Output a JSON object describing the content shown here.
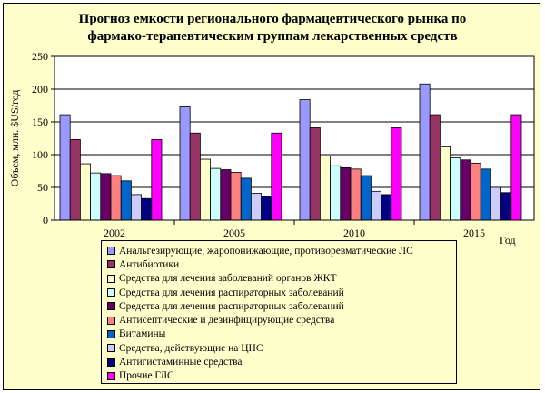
{
  "chart_data": {
    "type": "bar",
    "title": [
      "Прогноз емкости регионального фармацевтического рынка по",
      "фармако-терапевтическим группам лекарственных средств"
    ],
    "xlabel": "Год",
    "ylabel": "Объем, млн. $US/год",
    "ylim": [
      0,
      250
    ],
    "yticks": [
      0,
      50,
      100,
      150,
      200,
      250
    ],
    "grid": true,
    "legend_position": "bottom",
    "categories": [
      "2002",
      "2005",
      "2010",
      "2015"
    ],
    "series": [
      {
        "name": "Анальгезирующие, жаропонижающие, противоревматические ЛС",
        "color": "#9999ff",
        "values": [
          161,
          173,
          184,
          208
        ]
      },
      {
        "name": "Антибиотики",
        "color": "#993366",
        "values": [
          123,
          133,
          141,
          161
        ]
      },
      {
        "name": "Средства для лечения заболеваний органов ЖКТ",
        "color": "#ffffcc",
        "values": [
          86,
          93,
          98,
          112
        ]
      },
      {
        "name": "Средства для лечения распираторных заболеваний",
        "color": "#ccffff",
        "values": [
          72,
          79,
          83,
          95
        ]
      },
      {
        "name": "Средства для лечения распираторных заболеваний",
        "color": "#660066",
        "values": [
          71,
          77,
          80,
          92
        ]
      },
      {
        "name": "Антисептические и дезинфицирующие средства",
        "color": "#ff8080",
        "values": [
          68,
          73,
          78,
          87
        ]
      },
      {
        "name": "Витамины",
        "color": "#0066cc",
        "values": [
          60,
          64,
          68,
          78
        ]
      },
      {
        "name": "Средства, действующие на ЦНС",
        "color": "#ccccff",
        "values": [
          39,
          41,
          44,
          50
        ]
      },
      {
        "name": "Антигистаминные средства",
        "color": "#000080",
        "values": [
          33,
          36,
          39,
          42
        ]
      },
      {
        "name": "Прочие ГЛС",
        "color": "#ff00ff",
        "values": [
          123,
          133,
          141,
          161
        ]
      }
    ]
  }
}
